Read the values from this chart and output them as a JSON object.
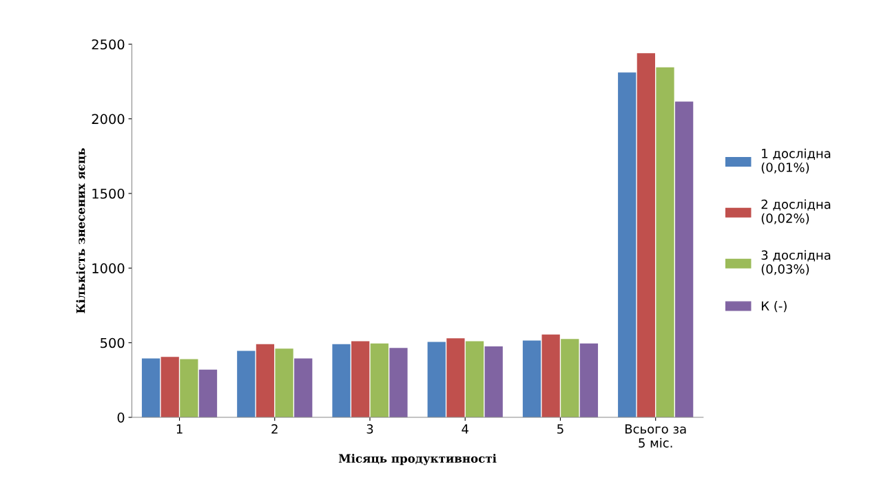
{
  "chart_data": {
    "type": "bar",
    "xlabel": "Місяць продуктивності",
    "ylabel": "Кількість знесених яєць",
    "categories": [
      "1",
      "2",
      "3",
      "4",
      "5",
      "Всього за\n5 міс."
    ],
    "series": [
      {
        "name": "1 дослідна\n(0,01%)",
        "color": "#4f81bd",
        "values": [
          395,
          445,
          490,
          505,
          515,
          2310
        ]
      },
      {
        "name": "2 дослідна\n(0,02%)",
        "color": "#c0504d",
        "values": [
          405,
          490,
          510,
          530,
          555,
          2440
        ]
      },
      {
        "name": "3 дослідна\n(0,03%)",
        "color": "#9bbb59",
        "values": [
          390,
          460,
          495,
          510,
          525,
          2345
        ]
      },
      {
        "name": "К (-)",
        "color": "#8064a2",
        "values": [
          320,
          395,
          465,
          475,
          495,
          2115
        ]
      }
    ],
    "ylim": [
      0,
      2500
    ],
    "yticks": [
      0,
      500,
      1000,
      1500,
      2000,
      2500
    ],
    "grid": false,
    "legend": "right"
  }
}
